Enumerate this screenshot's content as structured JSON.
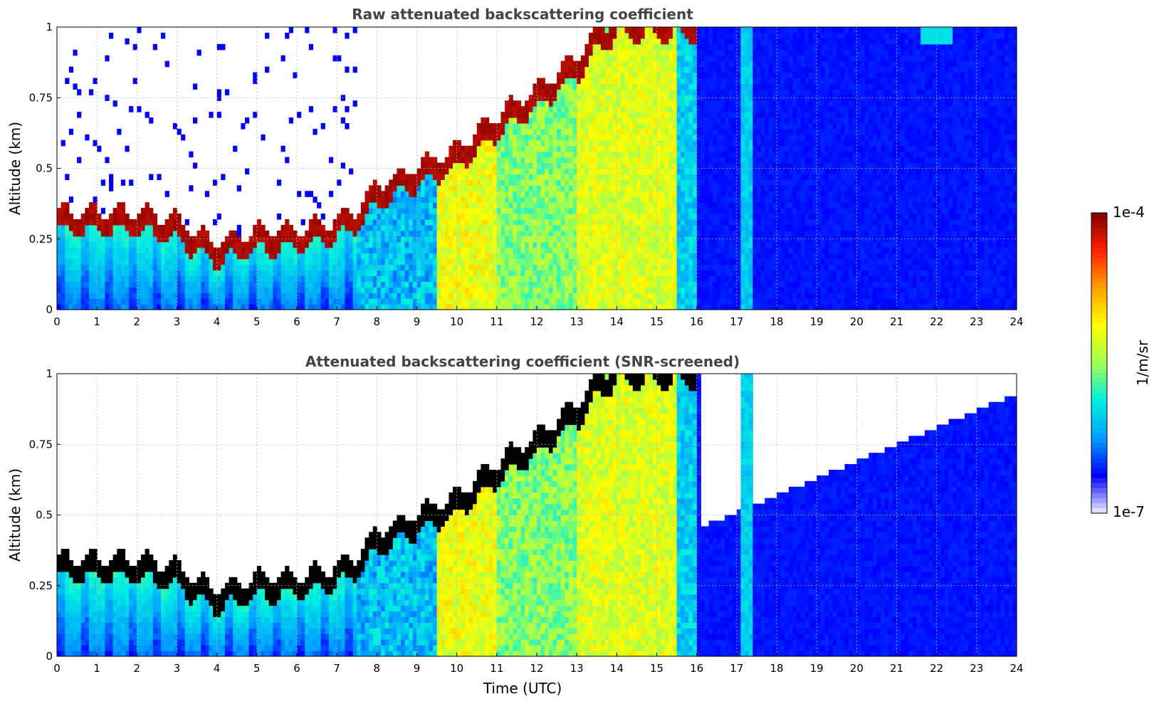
{
  "chart_data": [
    {
      "type": "heatmap",
      "title": "Raw attenuated backscattering coefficient",
      "xlabel": "",
      "ylabel": "Altitude (km)",
      "xlim": [
        0,
        24
      ],
      "ylim": [
        0,
        1
      ],
      "xticks": [
        "0",
        "1",
        "2",
        "3",
        "4",
        "5",
        "6",
        "7",
        "8",
        "9",
        "10",
        "11",
        "12",
        "13",
        "14",
        "15",
        "16",
        "17",
        "18",
        "19",
        "20",
        "21",
        "22",
        "23",
        "24"
      ],
      "yticks": [
        "0",
        "0.25",
        "0.5",
        "0.75",
        "1"
      ],
      "grid": true,
      "screened": false,
      "layer_top_km": [
        {
          "t": 0,
          "h": 0.31
        },
        {
          "t": 1,
          "h": 0.31
        },
        {
          "t": 2,
          "h": 0.31
        },
        {
          "t": 3,
          "h": 0.28
        },
        {
          "t": 3.5,
          "h": 0.23
        },
        {
          "t": 4,
          "h": 0.2
        },
        {
          "t": 5,
          "h": 0.24
        },
        {
          "t": 6,
          "h": 0.25
        },
        {
          "t": 7,
          "h": 0.28
        },
        {
          "t": 7.5,
          "h": 0.32
        },
        {
          "t": 8,
          "h": 0.4
        },
        {
          "t": 9,
          "h": 0.47
        },
        {
          "t": 10,
          "h": 0.53
        },
        {
          "t": 11,
          "h": 0.65
        },
        {
          "t": 12,
          "h": 0.74
        },
        {
          "t": 13,
          "h": 0.86
        },
        {
          "t": 13.7,
          "h": 0.97
        },
        {
          "t": 14,
          "h": 1.0
        }
      ]
    },
    {
      "type": "heatmap",
      "title": "Attenuated backscattering coefficient (SNR-screened)",
      "xlabel": "Time (UTC)",
      "ylabel": "Altitude (km)",
      "xlim": [
        0,
        24
      ],
      "ylim": [
        0,
        1
      ],
      "xticks": [
        "0",
        "1",
        "2",
        "3",
        "4",
        "5",
        "6",
        "7",
        "8",
        "9",
        "10",
        "11",
        "12",
        "13",
        "14",
        "15",
        "16",
        "17",
        "18",
        "19",
        "20",
        "21",
        "22",
        "23",
        "24"
      ],
      "yticks": [
        "0",
        "0.25",
        "0.5",
        "0.75",
        "1"
      ],
      "grid": true,
      "screened": true,
      "layer_top_km": [
        {
          "t": 0,
          "h": 0.31
        },
        {
          "t": 1,
          "h": 0.31
        },
        {
          "t": 2,
          "h": 0.31
        },
        {
          "t": 3,
          "h": 0.28
        },
        {
          "t": 3.5,
          "h": 0.23
        },
        {
          "t": 4,
          "h": 0.2
        },
        {
          "t": 5,
          "h": 0.24
        },
        {
          "t": 6,
          "h": 0.25
        },
        {
          "t": 7,
          "h": 0.28
        },
        {
          "t": 7.5,
          "h": 0.32
        },
        {
          "t": 8,
          "h": 0.4
        },
        {
          "t": 9,
          "h": 0.47
        },
        {
          "t": 10,
          "h": 0.53
        },
        {
          "t": 11,
          "h": 0.65
        },
        {
          "t": 12,
          "h": 0.74
        },
        {
          "t": 13,
          "h": 0.86
        },
        {
          "t": 13.7,
          "h": 0.97
        },
        {
          "t": 14,
          "h": 1.0
        }
      ]
    }
  ],
  "colorbar": {
    "max_label": "1e-4",
    "min_label": "1e-7",
    "unit_label": "1/m/sr",
    "scale": "log",
    "range": [
      1e-07,
      0.0001
    ],
    "colormap": [
      "#eef0ff",
      "#0000ff",
      "#00a0ff",
      "#00f0e0",
      "#a0ff50",
      "#ffff00",
      "#ffa000",
      "#ff2000",
      "#800000"
    ]
  }
}
